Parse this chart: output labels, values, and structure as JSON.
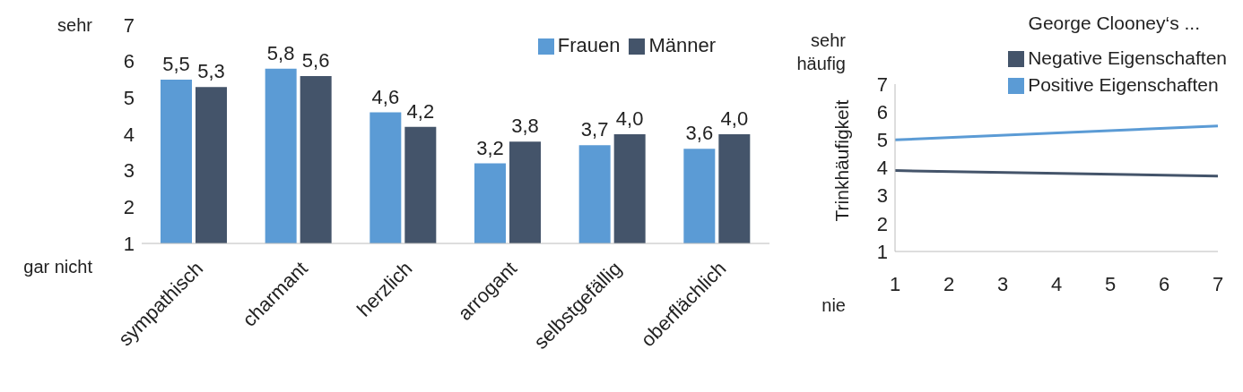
{
  "chart_data": [
    {
      "type": "bar",
      "categories": [
        "sympathisch",
        "charmant",
        "herzlich",
        "arrogant",
        "selbstgefällig",
        "oberflächlich"
      ],
      "series": [
        {
          "name": "Frauen",
          "color": "#5b9bd5",
          "values": [
            5.5,
            5.8,
            4.6,
            3.2,
            3.7,
            3.6
          ],
          "value_labels": [
            "5,5",
            "5,8",
            "4,6",
            "3,2",
            "3,7",
            "3,6"
          ]
        },
        {
          "name": "Männer",
          "color": "#44546a",
          "values": [
            5.3,
            5.6,
            4.2,
            3.8,
            4.0,
            4.0
          ],
          "value_labels": [
            "5,3",
            "5,6",
            "4,2",
            "3,8",
            "4,0",
            "4,0"
          ]
        }
      ],
      "ylim": [
        1,
        7
      ],
      "yticks": [
        1,
        2,
        3,
        4,
        5,
        6,
        7
      ],
      "legend": "top right",
      "annotations": [
        "sehr",
        "gar nicht"
      ]
    },
    {
      "type": "line",
      "title": "George Clooney‘s ...",
      "ylabel": "Trinkhäufigkeit",
      "x": [
        1,
        7
      ],
      "series": [
        {
          "name": "Positive Eigenschaften",
          "color": "#5b9bd5",
          "values": [
            5.0,
            5.5
          ]
        },
        {
          "name": "Negative Eigenschaften",
          "color": "#44546a",
          "values": [
            3.9,
            3.7
          ]
        }
      ],
      "xlim": [
        1,
        7
      ],
      "xticks": [
        1,
        2,
        3,
        4,
        5,
        6,
        7
      ],
      "ylim": [
        1,
        7
      ],
      "yticks": [
        1,
        2,
        3,
        4,
        5,
        6,
        7
      ],
      "legend": "top right",
      "marker": "none",
      "annotations": [
        "sehr häufig",
        "nie"
      ]
    }
  ]
}
